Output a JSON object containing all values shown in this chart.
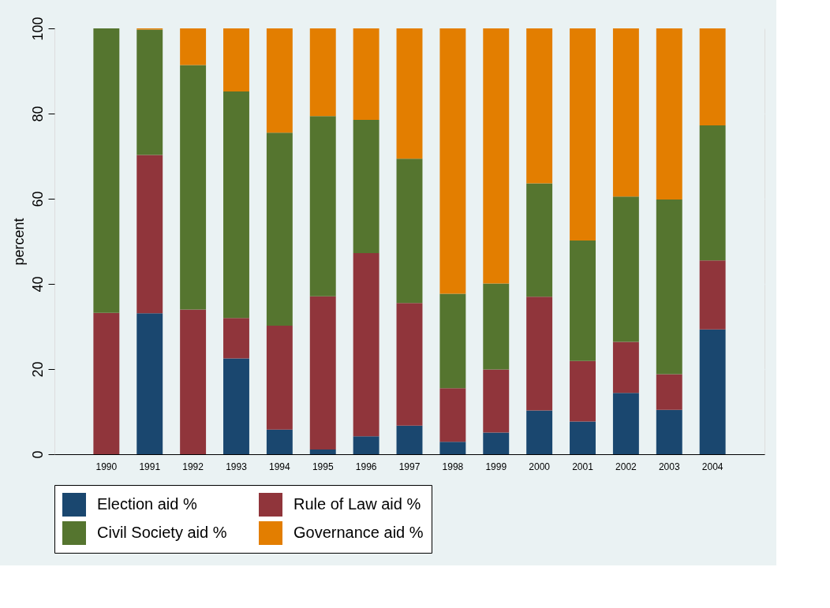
{
  "chart_data": {
    "type": "bar",
    "stacked": true,
    "ylabel": "percent",
    "categories": [
      "1990",
      "1991",
      "1992",
      "1993",
      "1994",
      "1995",
      "1996",
      "1997",
      "1998",
      "1999",
      "2000",
      "2001",
      "2002",
      "2003",
      "2004"
    ],
    "series": [
      {
        "name": "Election aid %",
        "color": "#1a476f",
        "values": [
          0,
          33.1,
          0,
          22.5,
          5.8,
          1.1,
          4.2,
          6.7,
          2.9,
          5.1,
          10.3,
          7.7,
          14.4,
          10.4,
          29.3
        ]
      },
      {
        "name": "Rule of Law aid %",
        "color": "#90353b",
        "values": [
          33.2,
          37.2,
          34.0,
          9.5,
          24.4,
          36.0,
          43.0,
          28.8,
          12.6,
          14.8,
          26.7,
          14.2,
          12.0,
          8.4,
          16.2
        ]
      },
      {
        "name": "Civil Society aid %",
        "color": "#55752f",
        "values": [
          66.8,
          29.4,
          57.4,
          53.2,
          45.3,
          42.3,
          31.3,
          33.9,
          22.2,
          20.2,
          26.6,
          28.3,
          34.1,
          41.0,
          31.7
        ]
      },
      {
        "name": "Governance aid %",
        "color": "#e37e00",
        "values": [
          0,
          0.3,
          8.6,
          14.8,
          24.5,
          20.6,
          21.5,
          30.6,
          62.3,
          59.9,
          36.4,
          49.8,
          39.5,
          40.2,
          22.8
        ]
      }
    ],
    "ylim": [
      0,
      100
    ],
    "yticks": [
      0,
      20,
      40,
      60,
      80,
      100
    ],
    "grid": "y",
    "legend": "bottom"
  }
}
